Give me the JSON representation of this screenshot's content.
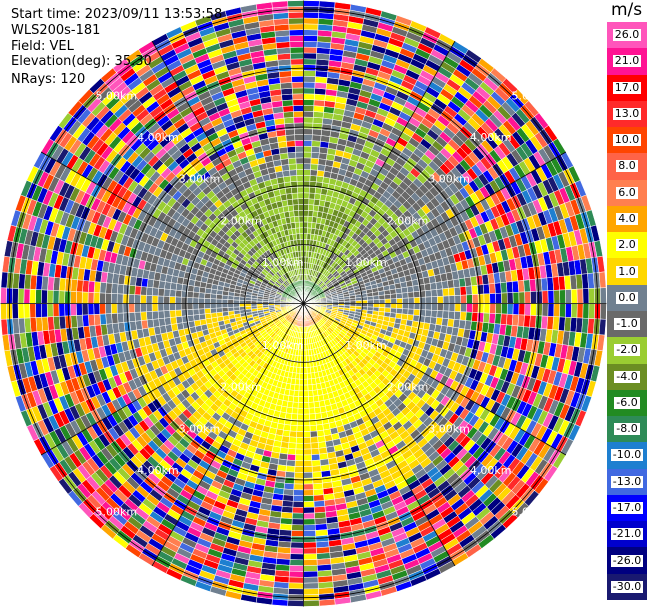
{
  "header": {
    "start_time": "Start time: 2023/09/11 13:53:58",
    "instrument": "WLS200s-181",
    "field": "Field: VEL",
    "elevation": "Elevation(deg): 35.30",
    "nrays": "NRays: 120"
  },
  "chart_data": {
    "type": "heatmap",
    "projection": "polar PPI",
    "field": "VEL",
    "units": "m/s",
    "n_rays": 120,
    "range_max_km": 5.15,
    "range_rings_km": [
      1,
      2,
      3,
      4,
      5
    ],
    "range_ring_labels": [
      "1.00km",
      "2.00km",
      "3.00km",
      "4.00km",
      "5.00km"
    ],
    "spoke_spacing_deg": 30,
    "colorbar": {
      "title": "m/s",
      "labels": [
        "26.0",
        "21.0",
        "17.0",
        "13.0",
        "10.0",
        "8.0",
        "6.0",
        "4.0",
        "2.0",
        "1.0",
        "0.0",
        "-1.0",
        "-2.0",
        "-4.0",
        "-6.0",
        "-8.0",
        "-10.0",
        "-13.0",
        "-17.0",
        "-21.0",
        "-26.0",
        "-30.0"
      ],
      "colors": [
        "#FF55BB",
        "#FF1493",
        "#FF0000",
        "#FF2A2A",
        "#FF4500",
        "#FF6347",
        "#FF7F50",
        "#FFA500",
        "#FFFF00",
        "#FFD700",
        "#708090",
        "#696969",
        "#9ACD32",
        "#6B8E23",
        "#228B22",
        "#2E8B57",
        "#1E7FD0",
        "#4169E1",
        "#0000FF",
        "#0000CD",
        "#000080",
        "#191970"
      ]
    },
    "description_of_field": "Near range: negative (green) velocities to the north, positive (yellow/orange) to the south, near-zero (grey) between; beyond ~3 km noisy values spanning the full color scale"
  }
}
